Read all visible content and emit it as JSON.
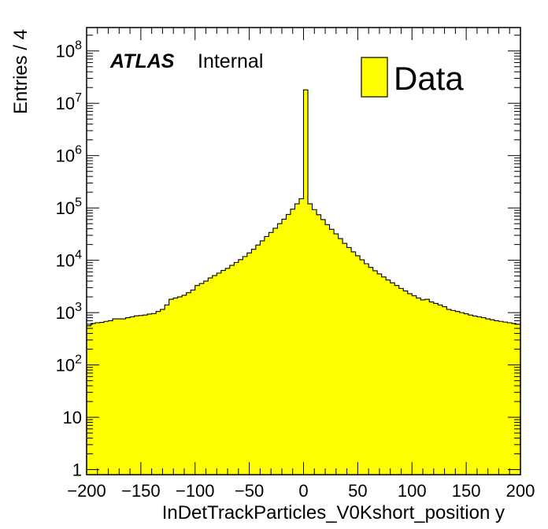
{
  "chart_data": {
    "type": "bar",
    "histogram": true,
    "xlabel": "InDetTrackParticles_V0Kshort_position y",
    "ylabel": "Entries / 4",
    "xlim": [
      -200,
      200
    ],
    "ylim": [
      0.8,
      280000000
    ],
    "yscale": "log",
    "bin_width": 4,
    "x_ticks": [
      -200,
      -150,
      -100,
      -50,
      0,
      50,
      100,
      150,
      200
    ],
    "x_tick_labels": [
      "−200",
      "−150",
      "−100",
      "−50",
      "0",
      "50",
      "100",
      "150",
      "200"
    ],
    "y_ticks": [
      {
        "value": 1,
        "base": "1",
        "exp": ""
      },
      {
        "value": 10,
        "base": "10",
        "exp": ""
      },
      {
        "value": 100,
        "base": "10",
        "exp": "2"
      },
      {
        "value": 1000,
        "base": "10",
        "exp": "3"
      },
      {
        "value": 10000,
        "base": "10",
        "exp": "4"
      },
      {
        "value": 100000,
        "base": "10",
        "exp": "5"
      },
      {
        "value": 1000000,
        "base": "10",
        "exp": "6"
      },
      {
        "value": 10000000,
        "base": "10",
        "exp": "7"
      },
      {
        "value": 100000000,
        "base": "10",
        "exp": "8"
      }
    ],
    "fill_color": "#ffff00",
    "line_color": "#000000",
    "grid": false,
    "legend": {
      "placement": "top-right",
      "entries": [
        {
          "label": "Data",
          "color": "#ffff00"
        }
      ]
    },
    "annotation": {
      "atlas": "ATLAS",
      "status": "Internal"
    },
    "values": [
      560,
      620,
      640,
      650,
      680,
      700,
      760,
      760,
      760,
      800,
      830,
      870,
      880,
      900,
      940,
      960,
      1050,
      1150,
      1400,
      1800,
      1900,
      2000,
      2150,
      2400,
      2700,
      3300,
      3600,
      4000,
      4600,
      5100,
      5700,
      6400,
      7000,
      8000,
      9100,
      10300,
      11800,
      13800,
      16200,
      19500,
      23500,
      28500,
      34000,
      41000,
      50000,
      61000,
      75000,
      95000,
      120000,
      150000,
      18000000,
      120000,
      93000,
      74000,
      60000,
      48000,
      39000,
      32000,
      26000,
      21000,
      17500,
      14500,
      12200,
      10200,
      8600,
      7300,
      6300,
      5500,
      4800,
      4200,
      3700,
      3300,
      2900,
      2600,
      2300,
      2100,
      1900,
      1750,
      1800,
      1600,
      1500,
      1400,
      1300,
      1150,
      1100,
      1050,
      1000,
      950,
      900,
      860,
      830,
      800,
      760,
      730,
      700,
      680,
      660,
      640,
      620,
      600
    ]
  }
}
